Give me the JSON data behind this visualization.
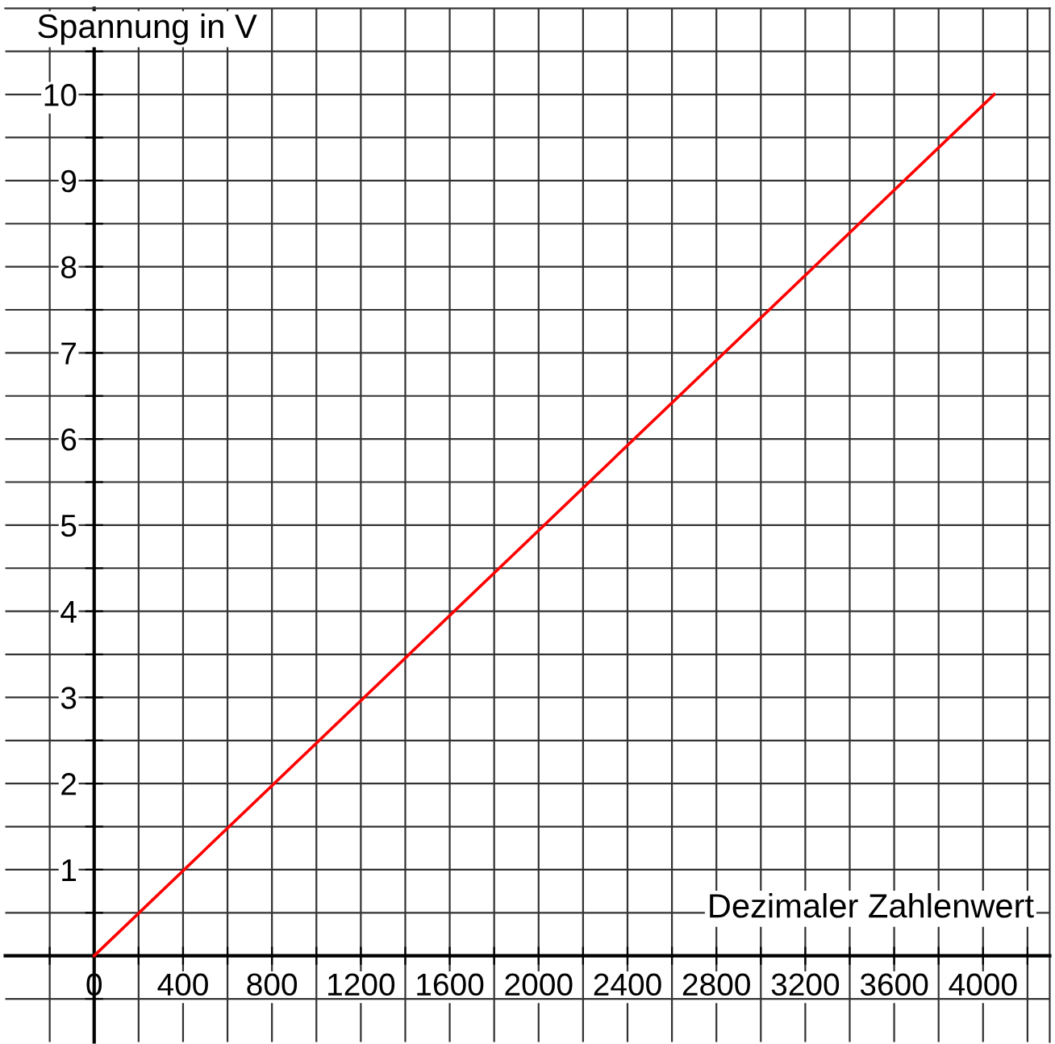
{
  "chart_data": {
    "type": "line",
    "xlabel": "Dezimaler Zahlenwert",
    "ylabel": "Spannung in V",
    "x": [
      0,
      4050
    ],
    "series": [
      {
        "color": "#ff0000",
        "values": [
          0,
          10
        ]
      }
    ],
    "xlim": [
      -400,
      4300
    ],
    "ylim": [
      -1,
      11
    ],
    "xticks": [
      {
        "value": -200,
        "label": null
      },
      {
        "value": 0,
        "label": "0"
      },
      {
        "value": 200,
        "label": null
      },
      400,
      {
        "value": 600,
        "label": null
      },
      800,
      {
        "value": 1000,
        "label": null
      },
      1200,
      {
        "value": 1400,
        "label": null
      },
      1600,
      {
        "value": 1800,
        "label": null
      },
      2000,
      {
        "value": 2200,
        "label": null
      },
      2400,
      {
        "value": 2600,
        "label": null
      },
      2800,
      {
        "value": 3000,
        "label": null
      },
      3200,
      {
        "value": 3400,
        "label": null
      },
      3600,
      {
        "value": 3800,
        "label": null
      },
      4000,
      {
        "value": 4200,
        "label": null
      }
    ],
    "yticks": [
      {
        "value": -0.5,
        "label": null
      },
      {
        "value": 0,
        "label": null
      },
      {
        "value": 0.5,
        "label": null
      },
      1,
      {
        "value": 1.5,
        "label": null
      },
      2,
      {
        "value": 2.5,
        "label": null
      },
      3,
      {
        "value": 3.5,
        "label": null
      },
      4,
      {
        "value": 4.5,
        "label": null
      },
      5,
      {
        "value": 5.5,
        "label": null
      },
      6,
      {
        "value": 6.5,
        "label": null
      },
      7,
      {
        "value": 7.5,
        "label": null
      },
      8,
      {
        "value": 8.5,
        "label": null
      },
      9,
      {
        "value": 9.5,
        "label": null
      },
      10,
      {
        "value": 10.5,
        "label": null
      }
    ],
    "grid": true,
    "legend": false,
    "marker": "none",
    "line_style": "solid"
  }
}
